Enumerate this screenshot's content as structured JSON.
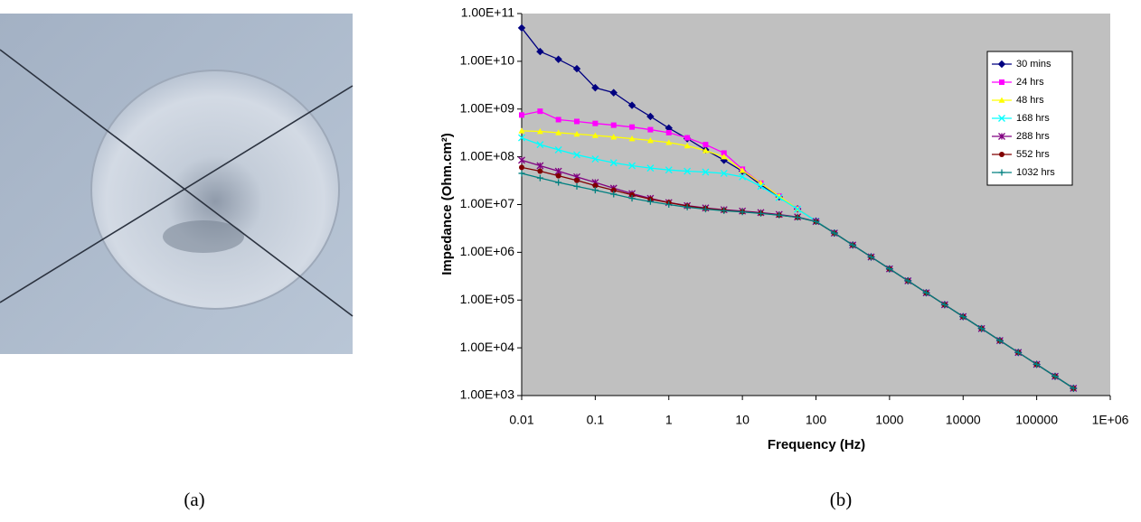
{
  "chart_data": {
    "type": "line",
    "x_label": "Frequency (Hz)",
    "y_label": "Impedance (Ohm.cm²)",
    "xscale": "log",
    "yscale": "log",
    "grid": false,
    "legend": "upper right",
    "background": "#c0c0c0",
    "xlim": [
      0.01,
      1000000
    ],
    "xticks": [
      0.01,
      0.1,
      1,
      10,
      100,
      1000,
      10000,
      100000,
      {
        "value": 1000000,
        "label": "1E+06"
      }
    ],
    "ylim": [
      1000,
      100000000000
    ],
    "yticks": [
      {
        "value": 1000,
        "label": "1.00E+03"
      },
      {
        "value": 10000,
        "label": "1.00E+04"
      },
      {
        "value": 100000,
        "label": "1.00E+05"
      },
      {
        "value": 1000000,
        "label": "1.00E+06"
      },
      {
        "value": 10000000,
        "label": "1.00E+07"
      },
      {
        "value": 100000000,
        "label": "1.00E+08"
      },
      {
        "value": 1000000000,
        "label": "1.00E+09"
      },
      {
        "value": 10000000000,
        "label": "1.00E+10"
      },
      {
        "value": 100000000000,
        "label": "1.00E+11"
      }
    ],
    "x": [
      0.01,
      0.0178,
      0.0316,
      0.0562,
      0.1,
      0.178,
      0.316,
      0.562,
      1,
      1.78,
      3.16,
      5.62,
      10,
      17.8,
      31.6,
      56.2,
      100,
      178,
      316,
      562,
      1000,
      1780,
      3160,
      5620,
      10000,
      17800,
      31600,
      56200,
      100000,
      178000,
      316000
    ],
    "series": [
      {
        "name": "30 mins",
        "color": "#000080",
        "marker": "diamond",
        "values": [
          50000000000.0,
          16000000000.0,
          11000000000.0,
          7000000000.0,
          2800000000.0,
          2200000000.0,
          1200000000.0,
          700000000.0,
          400000000.0,
          240000000.0,
          140000000.0,
          85000000.0,
          50000000.0,
          26000000.0,
          14500000.0,
          8100000.0,
          4500000.0,
          2530000.0,
          1420000.0,
          800000.0,
          450000.0,
          253000.0,
          142000.0,
          80000.0,
          45000.0,
          25300.0,
          14200.0,
          8000.0,
          4500.0,
          2530.0,
          1420.0
        ]
      },
      {
        "name": "24 hrs",
        "color": "#ff00ff",
        "marker": "square",
        "values": [
          750000000.0,
          900000000.0,
          600000000.0,
          550000000.0,
          500000000.0,
          460000000.0,
          420000000.0,
          370000000.0,
          320000000.0,
          250000000.0,
          180000000.0,
          120000000.0,
          55000000.0,
          28000000.0,
          15000000.0,
          8100000.0,
          4500000.0,
          2530000.0,
          1420000.0,
          800000.0,
          450000.0,
          253000.0,
          142000.0,
          80000.0,
          45000.0,
          25300.0,
          14200.0,
          8000.0,
          4500.0,
          2530.0,
          1420.0
        ]
      },
      {
        "name": "48 hrs",
        "color": "#ffff00",
        "marker": "triangle",
        "values": [
          350000000.0,
          340000000.0,
          320000000.0,
          300000000.0,
          280000000.0,
          260000000.0,
          240000000.0,
          220000000.0,
          200000000.0,
          170000000.0,
          135000000.0,
          100000000.0,
          52000000.0,
          28000000.0,
          15000000.0,
          8100000.0,
          4500000.0,
          2530000.0,
          1420000.0,
          800000.0,
          450000.0,
          253000.0,
          142000.0,
          80000.0,
          45000.0,
          25300.0,
          14200.0,
          8000.0,
          4500.0,
          2530.0,
          1420.0
        ]
      },
      {
        "name": "168 hrs",
        "color": "#00ffff",
        "marker": "x",
        "values": [
          250000000.0,
          180000000.0,
          140000000.0,
          110000000.0,
          90000000.0,
          75000000.0,
          65000000.0,
          58000000.0,
          53000000.0,
          50000000.0,
          48000000.0,
          45000000.0,
          38000000.0,
          24000000.0,
          14000000.0,
          8000000.0,
          4500000.0,
          2530000.0,
          1420000.0,
          800000.0,
          450000.0,
          253000.0,
          142000.0,
          80000.0,
          45000.0,
          25300.0,
          14200.0,
          8000.0,
          4500.0,
          2530.0,
          1420.0
        ]
      },
      {
        "name": "288 hrs",
        "color": "#800080",
        "marker": "star",
        "values": [
          85000000.0,
          65000000.0,
          50000000.0,
          38000000.0,
          29000000.0,
          22000000.0,
          17000000.0,
          13500000.0,
          11000000.0,
          9500000.0,
          8500000.0,
          7800000.0,
          7300000.0,
          6800000.0,
          6200000.0,
          5500000.0,
          4400000.0,
          2530000.0,
          1420000.0,
          800000.0,
          450000.0,
          253000.0,
          142000.0,
          80000.0,
          45000.0,
          25300.0,
          14200.0,
          8000.0,
          4500.0,
          2530.0,
          1420.0
        ]
      },
      {
        "name": "552 hrs",
        "color": "#800000",
        "marker": "circle",
        "values": [
          60000000.0,
          50000000.0,
          40000000.0,
          32000000.0,
          25000000.0,
          20000000.0,
          16000000.0,
          13000000.0,
          11000000.0,
          9300000.0,
          8300000.0,
          7600000.0,
          7100000.0,
          6600000.0,
          6000000.0,
          5400000.0,
          4400000.0,
          2530000.0,
          1420000.0,
          800000.0,
          450000.0,
          253000.0,
          142000.0,
          80000.0,
          45000.0,
          25300.0,
          14200.0,
          8000.0,
          4500.0,
          2530.0,
          1420.0
        ]
      },
      {
        "name": "1032 hrs",
        "color": "#008080",
        "marker": "plus",
        "values": [
          45000000.0,
          36000000.0,
          29000000.0,
          24000000.0,
          20000000.0,
          16500000.0,
          13500000.0,
          11500000.0,
          10000000.0,
          8800000.0,
          8000000.0,
          7400000.0,
          7000000.0,
          6500000.0,
          6000000.0,
          5400000.0,
          4400000.0,
          2530000.0,
          1420000.0,
          800000.0,
          450000.0,
          253000.0,
          142000.0,
          80000.0,
          45000.0,
          25300.0,
          14200.0,
          8000.0,
          4500.0,
          2530.0,
          1420.0
        ]
      }
    ]
  },
  "captions": [
    "(a)",
    "(b)"
  ]
}
